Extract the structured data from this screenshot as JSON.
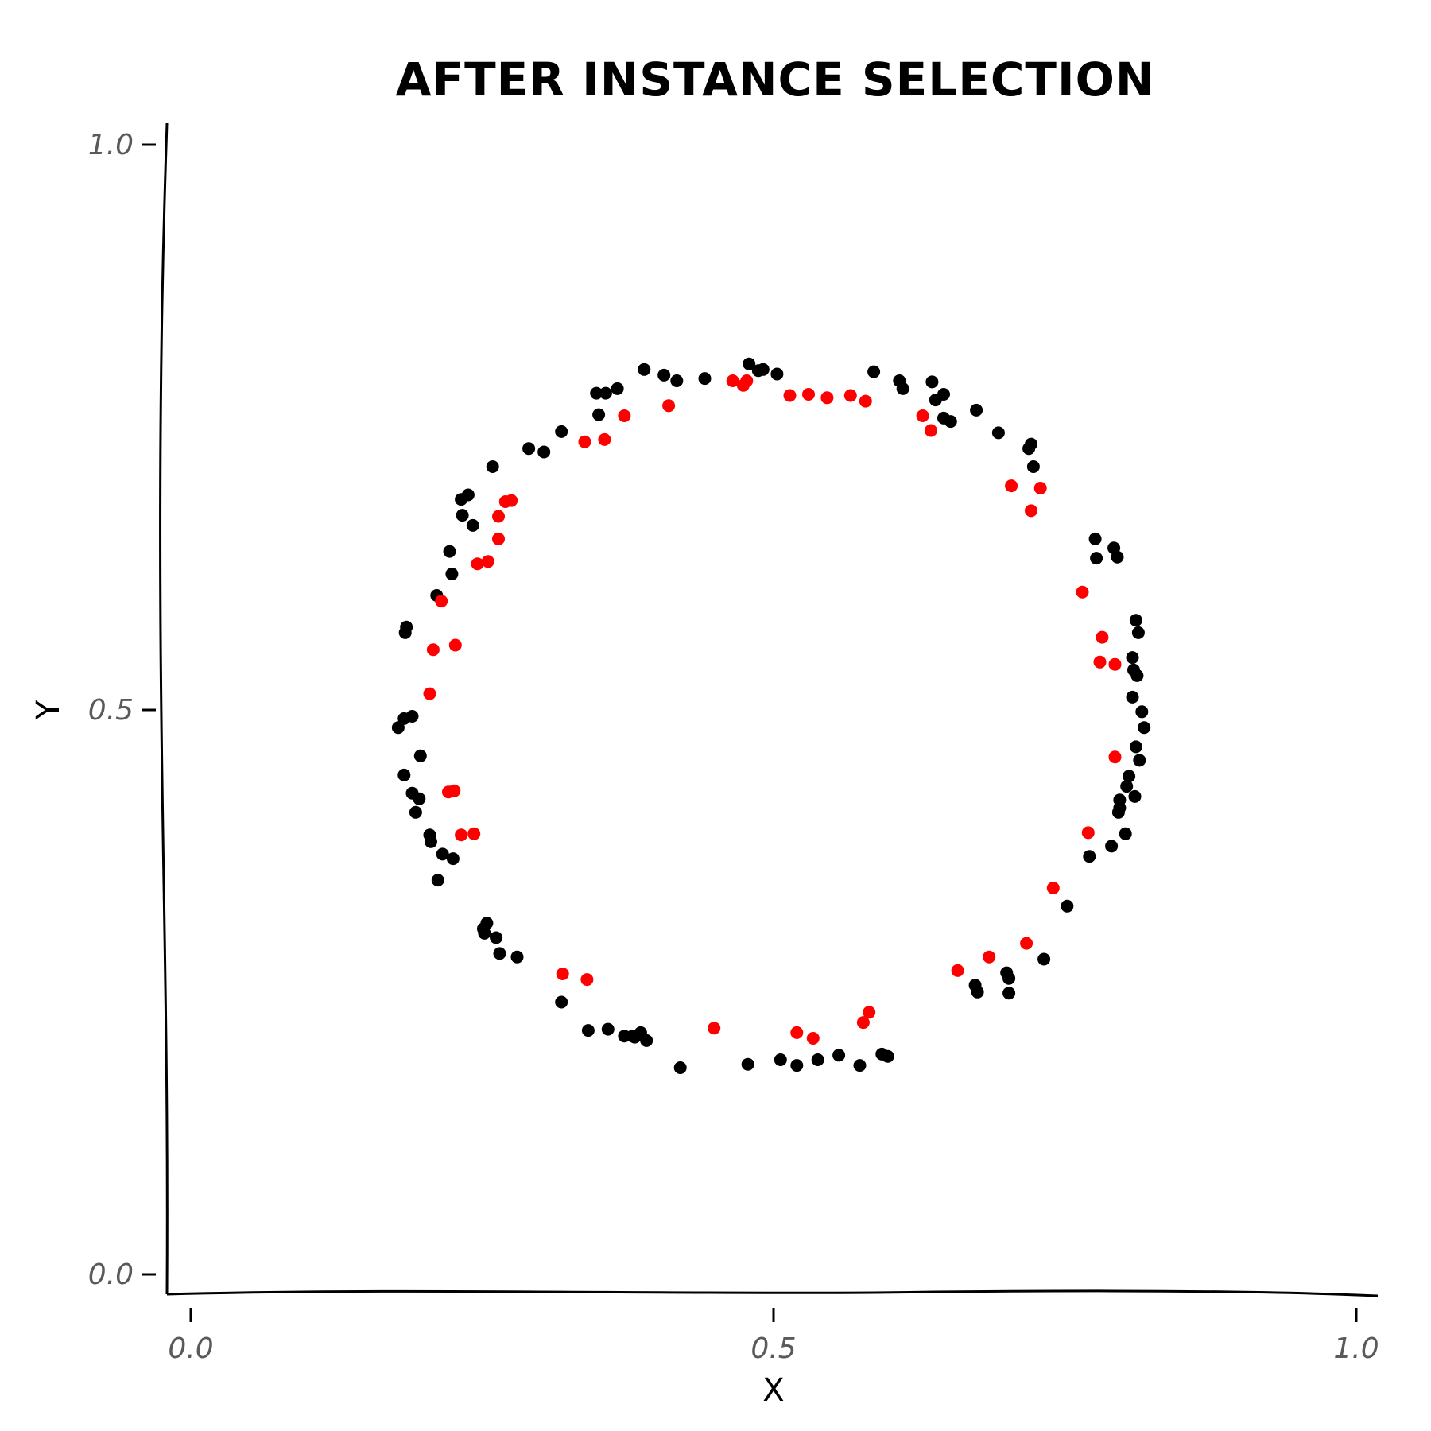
{
  "chart_data": {
    "type": "scatter",
    "title": "AFTER INSTANCE SELECTION",
    "xlabel": "X",
    "ylabel": "Y",
    "xlim": [
      0.0,
      1.0
    ],
    "ylim": [
      0.0,
      1.0
    ],
    "xticks": [
      "0.0",
      "0.5",
      "1.0"
    ],
    "yticks": [
      "0.0",
      "0.5",
      "1.0"
    ],
    "grid": false,
    "series": [
      {
        "color": "#000000",
        "points": [
          [
            0.777,
            0.634
          ],
          [
            0.776,
            0.651
          ],
          [
            0.792,
            0.643
          ],
          [
            0.795,
            0.635
          ],
          [
            0.811,
            0.579
          ],
          [
            0.813,
            0.568
          ],
          [
            0.808,
            0.546
          ],
          [
            0.809,
            0.535
          ],
          [
            0.812,
            0.53
          ],
          [
            0.808,
            0.511
          ],
          [
            0.816,
            0.498
          ],
          [
            0.818,
            0.484
          ],
          [
            0.811,
            0.467
          ],
          [
            0.814,
            0.455
          ],
          [
            0.805,
            0.441
          ],
          [
            0.803,
            0.432
          ],
          [
            0.81,
            0.423
          ],
          [
            0.797,
            0.42
          ],
          [
            0.797,
            0.413
          ],
          [
            0.796,
            0.409
          ],
          [
            0.802,
            0.39
          ],
          [
            0.79,
            0.379
          ],
          [
            0.771,
            0.37
          ],
          [
            0.752,
            0.326
          ],
          [
            0.732,
            0.279
          ],
          [
            0.7,
            0.267
          ],
          [
            0.702,
            0.262
          ],
          [
            0.702,
            0.249
          ],
          [
            0.673,
            0.256
          ],
          [
            0.675,
            0.25
          ],
          [
            0.593,
            0.195
          ],
          [
            0.598,
            0.193
          ],
          [
            0.574,
            0.185
          ],
          [
            0.556,
            0.194
          ],
          [
            0.538,
            0.19
          ],
          [
            0.52,
            0.185
          ],
          [
            0.506,
            0.19
          ],
          [
            0.478,
            0.186
          ],
          [
            0.42,
            0.183
          ],
          [
            0.391,
            0.207
          ],
          [
            0.386,
            0.214
          ],
          [
            0.381,
            0.21
          ],
          [
            0.379,
            0.211
          ],
          [
            0.372,
            0.211
          ],
          [
            0.358,
            0.217
          ],
          [
            0.341,
            0.216
          ],
          [
            0.318,
            0.241
          ],
          [
            0.28,
            0.281
          ],
          [
            0.265,
            0.284
          ],
          [
            0.262,
            0.298
          ],
          [
            0.252,
            0.302
          ],
          [
            0.251,
            0.306
          ],
          [
            0.254,
            0.311
          ],
          [
            0.212,
            0.349
          ],
          [
            0.225,
            0.368
          ],
          [
            0.216,
            0.372
          ],
          [
            0.206,
            0.383
          ],
          [
            0.205,
            0.389
          ],
          [
            0.193,
            0.409
          ],
          [
            0.196,
            0.421
          ],
          [
            0.19,
            0.426
          ],
          [
            0.183,
            0.442
          ],
          [
            0.197,
            0.459
          ],
          [
            0.178,
            0.484
          ],
          [
            0.183,
            0.492
          ],
          [
            0.19,
            0.494
          ],
          [
            0.184,
            0.568
          ],
          [
            0.185,
            0.573
          ],
          [
            0.211,
            0.601
          ],
          [
            0.224,
            0.62
          ],
          [
            0.222,
            0.64
          ],
          [
            0.242,
            0.663
          ],
          [
            0.233,
            0.672
          ],
          [
            0.232,
            0.686
          ],
          [
            0.238,
            0.69
          ],
          [
            0.259,
            0.715
          ],
          [
            0.29,
            0.731
          ],
          [
            0.303,
            0.728
          ],
          [
            0.318,
            0.746
          ],
          [
            0.35,
            0.761
          ],
          [
            0.348,
            0.78
          ],
          [
            0.356,
            0.78
          ],
          [
            0.366,
            0.784
          ],
          [
            0.389,
            0.801
          ],
          [
            0.406,
            0.796
          ],
          [
            0.417,
            0.791
          ],
          [
            0.441,
            0.793
          ],
          [
            0.479,
            0.806
          ],
          [
            0.487,
            0.8
          ],
          [
            0.491,
            0.801
          ],
          [
            0.503,
            0.797
          ],
          [
            0.586,
            0.799
          ],
          [
            0.608,
            0.791
          ],
          [
            0.611,
            0.784
          ],
          [
            0.636,
            0.79
          ],
          [
            0.639,
            0.774
          ],
          [
            0.646,
            0.779
          ],
          [
            0.674,
            0.765
          ],
          [
            0.646,
            0.758
          ],
          [
            0.652,
            0.755
          ],
          [
            0.693,
            0.745
          ],
          [
            0.721,
            0.735
          ],
          [
            0.719,
            0.731
          ],
          [
            0.723,
            0.715
          ]
        ]
      },
      {
        "color": "#ff0000",
        "points": [
          [
            0.465,
            0.791
          ],
          [
            0.474,
            0.787
          ],
          [
            0.477,
            0.791
          ],
          [
            0.514,
            0.778
          ],
          [
            0.53,
            0.779
          ],
          [
            0.546,
            0.776
          ],
          [
            0.566,
            0.778
          ],
          [
            0.579,
            0.773
          ],
          [
            0.628,
            0.76
          ],
          [
            0.635,
            0.747
          ],
          [
            0.704,
            0.698
          ],
          [
            0.729,
            0.696
          ],
          [
            0.721,
            0.676
          ],
          [
            0.765,
            0.604
          ],
          [
            0.782,
            0.564
          ],
          [
            0.78,
            0.542
          ],
          [
            0.793,
            0.54
          ],
          [
            0.793,
            0.458
          ],
          [
            0.77,
            0.391
          ],
          [
            0.74,
            0.342
          ],
          [
            0.717,
            0.293
          ],
          [
            0.685,
            0.281
          ],
          [
            0.658,
            0.269
          ],
          [
            0.582,
            0.232
          ],
          [
            0.577,
            0.223
          ],
          [
            0.534,
            0.209
          ],
          [
            0.52,
            0.214
          ],
          [
            0.449,
            0.218
          ],
          [
            0.34,
            0.261
          ],
          [
            0.319,
            0.266
          ],
          [
            0.232,
            0.389
          ],
          [
            0.243,
            0.39
          ],
          [
            0.221,
            0.427
          ],
          [
            0.226,
            0.428
          ],
          [
            0.205,
            0.514
          ],
          [
            0.208,
            0.553
          ],
          [
            0.227,
            0.557
          ],
          [
            0.215,
            0.596
          ],
          [
            0.246,
            0.629
          ],
          [
            0.255,
            0.631
          ],
          [
            0.264,
            0.651
          ],
          [
            0.264,
            0.671
          ],
          [
            0.27,
            0.684
          ],
          [
            0.275,
            0.685
          ],
          [
            0.338,
            0.737
          ],
          [
            0.355,
            0.739
          ],
          [
            0.372,
            0.76
          ],
          [
            0.41,
            0.769
          ]
        ]
      }
    ]
  }
}
